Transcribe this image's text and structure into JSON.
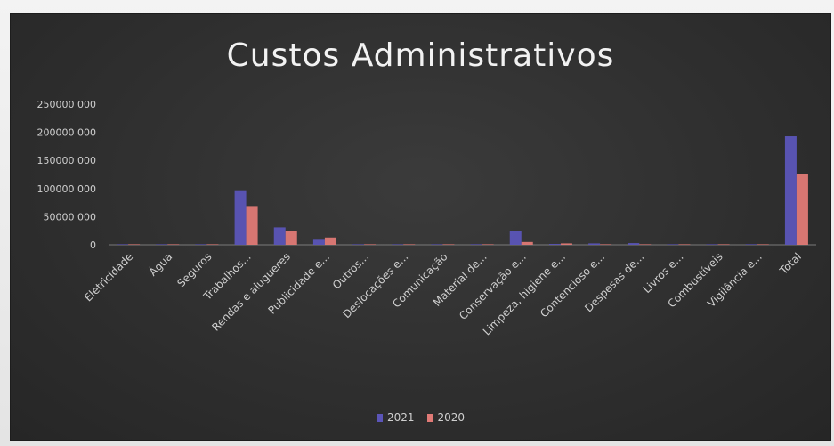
{
  "chart_data": {
    "type": "bar",
    "title": "Custos Administrativos",
    "xlabel": "",
    "ylabel": "",
    "ylim": [
      0,
      250000000
    ],
    "yticks": [
      0,
      50000000,
      100000000,
      150000000,
      200000000,
      250000000
    ],
    "ytick_labels": [
      "0",
      "50000 000",
      "100000 000",
      "150000 000",
      "200000 000",
      "250000 000"
    ],
    "categories": [
      "Eletricidade",
      "Água",
      "Seguros",
      "Trabalhos...",
      "Rendas e alugueres",
      "Publicidade e...",
      "Outros...",
      "Deslocações e...",
      "Comunicação",
      "Material de...",
      "Conservação e...",
      "Limpeza, higiene e...",
      "Contencioso e...",
      "Despesas de...",
      "Livros e...",
      "Combustíveis",
      "Vigilância e...",
      "Total"
    ],
    "series": [
      {
        "name": "2021",
        "color": "#5b55b8",
        "values": [
          500000,
          300000,
          400000,
          97000000,
          31000000,
          9000000,
          500000,
          400000,
          300000,
          1000000,
          24000000,
          1500000,
          2500000,
          3000000,
          400000,
          500000,
          1000000,
          193000000
        ]
      },
      {
        "name": "2020",
        "color": "#e07a76",
        "values": [
          400000,
          300000,
          300000,
          69000000,
          24000000,
          13000000,
          400000,
          300000,
          300000,
          800000,
          5000000,
          2500000,
          800000,
          600000,
          300000,
          400000,
          800000,
          126000000
        ]
      }
    ],
    "grid": false,
    "legend": "bottom"
  }
}
